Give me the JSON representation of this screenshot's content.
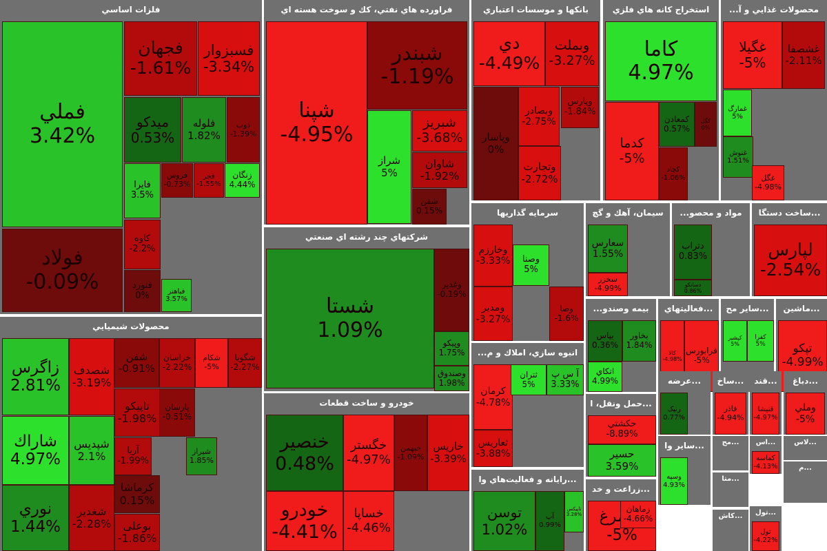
{
  "chart_data": {
    "type": "treemap",
    "sectors": [
      {
        "name": "فلزات اساسي",
        "stocks": [
          {
            "symbol": "فملي",
            "change": 3.42
          },
          {
            "symbol": "فولاد",
            "change": -0.09
          },
          {
            "symbol": "فجهان",
            "change": -1.61
          },
          {
            "symbol": "فسبزوار",
            "change": -3.34
          },
          {
            "symbol": "میدکو",
            "change": 0.53
          },
          {
            "symbol": "فلوله",
            "change": 1.82
          },
          {
            "symbol": "ذوب",
            "change": -1.39
          },
          {
            "symbol": "فايرا",
            "change": 3.5
          },
          {
            "symbol": "فروس",
            "change": -0.73
          },
          {
            "symbol": "فجر",
            "change": -1.55
          },
          {
            "symbol": "زنگان",
            "change": 4.44
          },
          {
            "symbol": "كاوه",
            "change": -2.2
          },
          {
            "symbol": "فنورد",
            "change": 0.0
          },
          {
            "symbol": "فباهنر",
            "change": 3.57
          }
        ]
      },
      {
        "name": "فراورده هاي نفتي، كك و سوخت هسته اي",
        "stocks": [
          {
            "symbol": "شپنا",
            "change": -4.95
          },
          {
            "symbol": "شبندر",
            "change": -1.19
          },
          {
            "symbol": "شراز",
            "change": 5
          },
          {
            "symbol": "شبریز",
            "change": -3.68
          },
          {
            "symbol": "شاوان",
            "change": -1.92
          },
          {
            "symbol": "شفن",
            "change": 0.15
          }
        ]
      },
      {
        "name": "بانكها و موسسات اعتباري",
        "stocks": [
          {
            "symbol": "دي",
            "change": -4.49
          },
          {
            "symbol": "وبملت",
            "change": -3.27
          },
          {
            "symbol": "وپاسار",
            "change": 0
          },
          {
            "symbol": "وبصادر",
            "change": -2.75
          },
          {
            "symbol": "وتجارت",
            "change": -2.72
          },
          {
            "symbol": "وپارس",
            "change": -1.84
          }
        ]
      },
      {
        "name": "استخراج كانه هاي فلزي",
        "stocks": [
          {
            "symbol": "كاما",
            "change": 4.97
          },
          {
            "symbol": "كدما",
            "change": -5
          },
          {
            "symbol": "كمعادن",
            "change": 0.57
          },
          {
            "symbol": "كگل",
            "change": 0
          },
          {
            "symbol": "كچاد",
            "change": -1.06
          }
        ]
      },
      {
        "name": "محصولات غذايي و آ...",
        "stocks": [
          {
            "symbol": "غگیلا",
            "change": -5
          },
          {
            "symbol": "غشصفا",
            "change": -2.11
          },
          {
            "symbol": "غمارگ",
            "change": 5
          },
          {
            "symbol": "غنوش",
            "change": 1.51
          },
          {
            "symbol": "غگل",
            "change": -4.98
          }
        ]
      },
      {
        "name": "محصولات شيميايي",
        "stocks": [
          {
            "symbol": "زاگرس",
            "change": 2.81
          },
          {
            "symbol": "شصدف",
            "change": -3.19
          },
          {
            "symbol": "شفن",
            "change": -0.91
          },
          {
            "symbol": "خراسان",
            "change": -2.22
          },
          {
            "symbol": "شكام",
            "change": -5
          },
          {
            "symbol": "شگویا",
            "change": -2.27
          },
          {
            "symbol": "شاراك",
            "change": 4.97
          },
          {
            "symbol": "شپدیس",
            "change": 2.1
          },
          {
            "symbol": "نوري",
            "change": 1.44
          },
          {
            "symbol": "شغدير",
            "change": -2.28
          },
          {
            "symbol": "تاپیکو",
            "change": -1.98
          },
          {
            "symbol": "پارسان",
            "change": -0.51
          },
          {
            "symbol": "آريا",
            "change": -1.99
          },
          {
            "symbol": "شیراز",
            "change": 1.85
          },
          {
            "symbol": "کرماشا",
            "change": 0.15
          },
          {
            "symbol": "بوعلی",
            "change": -1.86
          }
        ]
      },
      {
        "name": "شركتهاي چند رشته اي صنعتي",
        "stocks": [
          {
            "symbol": "شستا",
            "change": 1.09
          },
          {
            "symbol": "وغدیر",
            "change": -0.19
          },
          {
            "symbol": "وپیکو",
            "change": 1.75
          },
          {
            "symbol": "وصندوق",
            "change": 1.98
          }
        ]
      },
      {
        "name": "خودرو و ساخت قطعات",
        "stocks": [
          {
            "symbol": "خنصير",
            "change": 0.48
          },
          {
            "symbol": "خگستر",
            "change": -4.97
          },
          {
            "symbol": "خبهمن",
            "change": -1.09
          },
          {
            "symbol": "خاریس",
            "change": -3.39
          },
          {
            "symbol": "خودرو",
            "change": -4.41
          },
          {
            "symbol": "خساپا",
            "change": -4.46
          }
        ]
      },
      {
        "name": "سرمايه گذاريها",
        "stocks": [
          {
            "symbol": "وخارزم",
            "change": -3.33
          },
          {
            "symbol": "ومدیر",
            "change": -3.27
          },
          {
            "symbol": "وصنا",
            "change": 5
          },
          {
            "symbol": "وصا",
            "change": -1.6
          }
        ]
      },
      {
        "name": "انبوه سازي، املاك و م...",
        "stocks": [
          {
            "symbol": "كرمان",
            "change": -4.78
          },
          {
            "symbol": "ثتران",
            "change": 5
          },
          {
            "symbol": "آ س پ",
            "change": 3.33
          },
          {
            "symbol": "ثعاریس",
            "change": -3.88
          }
        ]
      },
      {
        "name": "...رايانه و فعاليت‌هاي وا",
        "stocks": [
          {
            "symbol": "توسن",
            "change": 1.02
          },
          {
            "symbol": "آپ",
            "change": 0.99
          },
          {
            "symbol": "تاپیکس",
            "change": 3.28
          }
        ]
      },
      {
        "name": "سيمان، آهك و گچ",
        "stocks": [
          {
            "symbol": "سعارس",
            "change": 1.55
          },
          {
            "symbol": "سخزر",
            "change": -4.99
          }
        ]
      },
      {
        "name": "مواد و محصو...",
        "stocks": [
          {
            "symbol": "دتراب",
            "change": 0.83
          },
          {
            "symbol": "دسانكو",
            "change": 0.86
          }
        ]
      },
      {
        "name": "...ساخت دستگا",
        "stocks": [
          {
            "symbol": "لپارس",
            "change": -2.54
          }
        ]
      },
      {
        "name": "بيمه وصندو...",
        "stocks": [
          {
            "symbol": "بپاس",
            "change": 0.36
          },
          {
            "symbol": "اتكاي",
            "change": 4.99
          },
          {
            "symbol": "بخاور",
            "change": 1.84
          }
        ]
      },
      {
        "name": "...فعاليتهاي",
        "stocks": [
          {
            "symbol": "كالا",
            "change": -4.98
          },
          {
            "symbol": "فرابورس",
            "change": -5
          }
        ]
      },
      {
        "name": "...سایر مح",
        "stocks": [
          {
            "symbol": "كپشير",
            "change": 5
          },
          {
            "symbol": "كفرا",
            "change": 5
          }
        ]
      },
      {
        "name": "...ماشين",
        "stocks": [
          {
            "symbol": "تپکو",
            "change": -4.99
          }
        ]
      },
      {
        "name": "...حمل ونقل، ا",
        "stocks": [
          {
            "symbol": "حكشتي",
            "change": -8.89
          },
          {
            "symbol": "حسير",
            "change": 3.59
          }
        ]
      },
      {
        "name": "...زراعت و خد",
        "stocks": [
          {
            "symbol": "سيمرغ",
            "change": -5
          },
          {
            "symbol": "زماهان",
            "change": -4.66
          }
        ]
      },
      {
        "name": "...ماشين",
        "stocks": []
      },
      {
        "name": "...قند",
        "stocks": [
          {
            "symbol": "قنيشا",
            "change": -4.97
          }
        ]
      },
      {
        "name": "...دباغ",
        "stocks": [
          {
            "symbol": "وملي",
            "change": -5
          }
        ]
      },
      {
        "name": "...ساخ",
        "stocks": [
          {
            "symbol": "فاذر",
            "change": -4.94
          }
        ]
      },
      {
        "name": "...عرضه",
        "stocks": [
          {
            "symbol": "رنیک",
            "change": 0.77
          }
        ]
      },
      {
        "name": "...سایر وا",
        "stocks": [
          {
            "symbol": "وسپه",
            "change": 4.93
          }
        ]
      },
      {
        "name": "...لاس",
        "stocks": []
      },
      {
        "name": "...اس",
        "stocks": [
          {
            "symbol": "کماسه",
            "change": -4.13
          }
        ]
      },
      {
        "name": "...مح",
        "stocks": []
      },
      {
        "name": "...متا",
        "stocks": []
      },
      {
        "name": "...تول",
        "stocks": [
          {
            "symbol": "تول",
            "change": -4.22
          }
        ]
      },
      {
        "name": "...م",
        "stocks": []
      },
      {
        "name": "...كاش",
        "stocks": []
      }
    ]
  }
}
